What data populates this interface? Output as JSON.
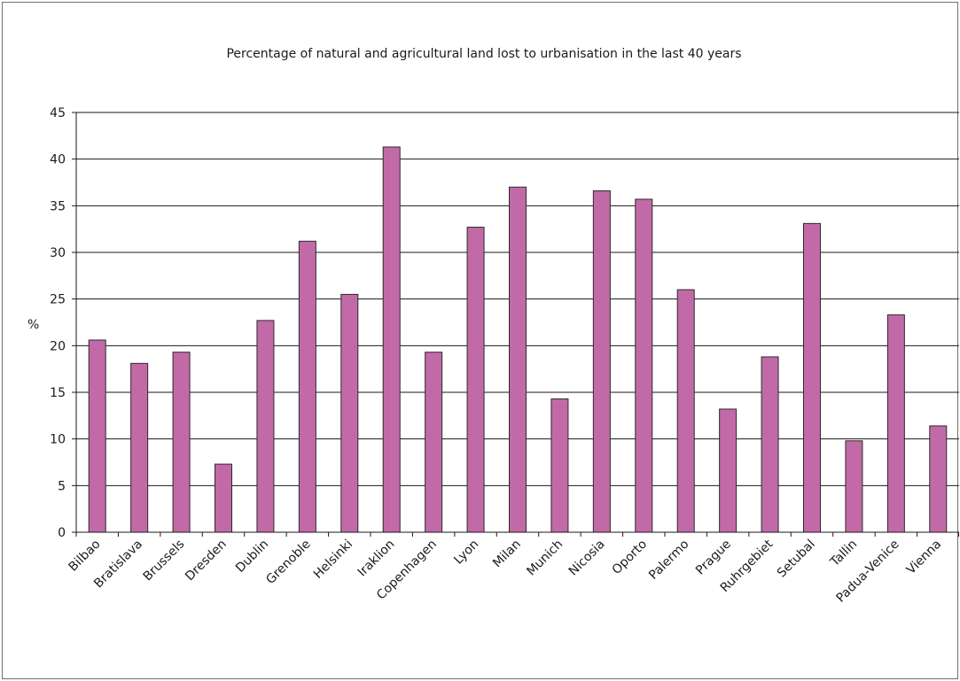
{
  "chart_data": {
    "type": "bar",
    "title": "Percentage of natural and agricultural land lost to urbanisation in the last 40 years",
    "xlabel": "",
    "ylabel": "%",
    "ylim": [
      0,
      45
    ],
    "yticks": [
      "0",
      "5",
      "10",
      "15",
      "20",
      "25",
      "30",
      "35",
      "40",
      "45"
    ],
    "grid": true,
    "legend": "none",
    "bar_color": "#c26aa7",
    "bar_stroke": "#2b2b2b",
    "categories": [
      "Bilbao",
      "Bratislava",
      "Brussels",
      "Dresden",
      "Dublin",
      "Grenoble",
      "Helsinki",
      "Iraklion",
      "Copenhagen",
      "Lyon",
      "Milan",
      "Munich",
      "Nicosia",
      "Oporto",
      "Palermo",
      "Prague",
      "Ruhrgebiet",
      "Setubal",
      "Tallin",
      "Padua-Venice",
      "Vienna"
    ],
    "values": [
      20.6,
      18.1,
      19.3,
      7.3,
      22.7,
      31.2,
      25.5,
      41.3,
      19.3,
      32.7,
      37.0,
      14.3,
      36.6,
      35.7,
      26.0,
      13.2,
      18.8,
      33.1,
      9.8,
      23.3,
      11.4
    ]
  }
}
